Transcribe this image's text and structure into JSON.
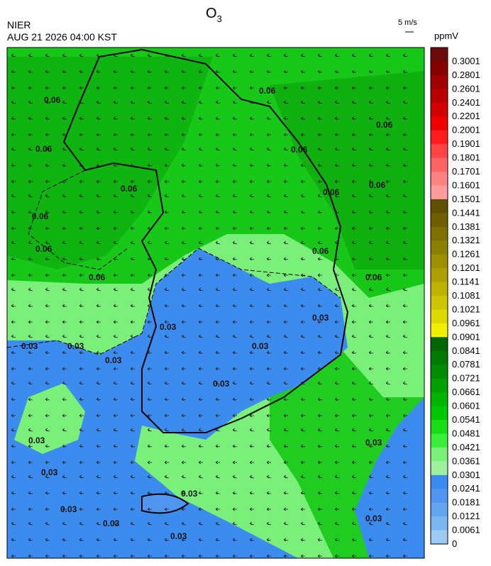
{
  "header": {
    "title": {
      "base": "O",
      "subscript": "3"
    },
    "agency": "NIER",
    "timestamp": "AUG 21 2026 04:00 KST",
    "vector_scale": "5 m/s"
  },
  "contour_labels": [
    0.03,
    0.06
  ],
  "colorbar": {
    "unit": "ppmV",
    "levels": [
      0.3001,
      0.2801,
      0.2601,
      0.2401,
      0.2201,
      0.2001,
      0.1901,
      0.1801,
      0.1701,
      0.1601,
      0.1501,
      0.1441,
      0.1381,
      0.1321,
      0.1261,
      0.1201,
      0.1141,
      0.1081,
      0.1021,
      0.0961,
      0.0901,
      0.0841,
      0.0781,
      0.0721,
      0.0661,
      0.0601,
      0.0541,
      0.0481,
      0.0421,
      0.0361,
      0.0301,
      0.0241,
      0.0181,
      0.0121,
      0.0061,
      0
    ],
    "colors": [
      "#6a0a0a",
      "#870000",
      "#a00000",
      "#b90000",
      "#d20000",
      "#ee0000",
      "#ff1e1e",
      "#ff4646",
      "#ff6464",
      "#ff8282",
      "#ff9c9c",
      "#5e5000",
      "#6e6000",
      "#7e7000",
      "#8c8000",
      "#9c9000",
      "#aca000",
      "#bcb200",
      "#ccc400",
      "#dcd800",
      "#f0f000",
      "#006600",
      "#007a00",
      "#008c00",
      "#00a000",
      "#00b400",
      "#00c800",
      "#18dc18",
      "#3cee3c",
      "#7af07a",
      "#a0f0a0",
      "#3c8cf0",
      "#5096f0",
      "#64a6f0",
      "#7cb8f0",
      "#9ccaf0"
    ]
  }
}
